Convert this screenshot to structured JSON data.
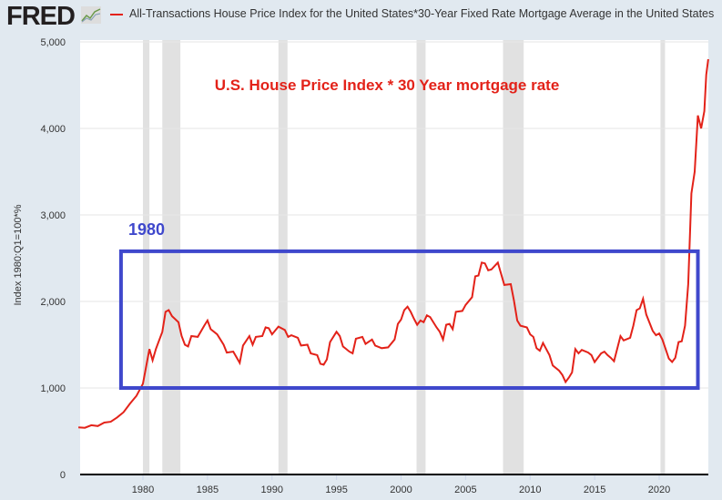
{
  "header": {
    "logo": "FRED",
    "legend": "All-Transactions House Price Index for the United States*30-Year Fixed Rate Mortgage Average in the United States"
  },
  "colors": {
    "series": "#e32219",
    "box": "#3f48cc",
    "recession": "#e1e1e1",
    "annotation": "#e32219"
  },
  "chart_data": {
    "type": "line",
    "ylabel": "Index 1980:Q1=100*%",
    "ylim": [
      0,
      5000
    ],
    "xlim": [
      1975,
      2024
    ],
    "yticks": [
      "0",
      "1,000",
      "2,000",
      "3,000",
      "4,000",
      "5,000"
    ],
    "xticks": [
      "1980",
      "1985",
      "1990",
      "1995",
      "2000",
      "2005",
      "2010",
      "2015",
      "2020"
    ],
    "grid": true,
    "legend_position": "top",
    "recessions": [
      [
        1980.0,
        1980.5
      ],
      [
        1981.5,
        1982.9
      ],
      [
        1990.5,
        1991.2
      ],
      [
        2001.2,
        2001.9
      ],
      [
        2007.9,
        2009.5
      ],
      [
        2020.1,
        2020.4
      ]
    ],
    "annotations": {
      "title": "U.S. House Price Index * 30 Year mortgage rate",
      "box_label": "1980",
      "box_range": {
        "x": [
          1978.3,
          2023
        ],
        "y": [
          1000,
          2580
        ]
      }
    },
    "series": [
      {
        "x": [
          1975,
          1975.5,
          1976,
          1976.5,
          1977,
          1977.5,
          1978,
          1978.5,
          1979,
          1979.5,
          1980,
          1980.5,
          1980.75,
          1981,
          1981.5,
          1981.75,
          1982,
          1982.25,
          1982.75,
          1983,
          1983.25,
          1983.5,
          1983.75,
          1984.25,
          1984.75,
          1985,
          1985.25,
          1985.75,
          1986,
          1986.25,
          1986.5,
          1987,
          1987.5,
          1987.75,
          1988.25,
          1988.5,
          1988.75,
          1989.25,
          1989.5,
          1989.75,
          1990,
          1990.5,
          1991,
          1991.25,
          1991.5,
          1992,
          1992.25,
          1992.75,
          1993,
          1993.5,
          1993.75,
          1994,
          1994.25,
          1994.5,
          1995,
          1995.25,
          1995.5,
          1996,
          1996.25,
          1996.5,
          1997,
          1997.25,
          1997.75,
          1998,
          1998.5,
          1999,
          1999.5,
          1999.75,
          2000,
          2000.25,
          2000.5,
          2000.75,
          2001,
          2001.25,
          2001.5,
          2001.75,
          2002,
          2002.25,
          2002.75,
          2003,
          2003.25,
          2003.5,
          2003.75,
          2004,
          2004.25,
          2004.75,
          2005,
          2005.5,
          2005.75,
          2006,
          2006.25,
          2006.5,
          2006.75,
          2007,
          2007.5,
          2008,
          2008.5,
          2008.75,
          2009,
          2009.25,
          2009.75,
          2010,
          2010.25,
          2010.5,
          2010.75,
          2011,
          2011.5,
          2011.75,
          2012.25,
          2012.5,
          2012.75,
          2013,
          2013.25,
          2013.5,
          2013.75,
          2014,
          2014.5,
          2014.75,
          2015,
          2015.5,
          2015.75,
          2016,
          2016.25,
          2016.5,
          2017,
          2017.25,
          2017.75,
          2018,
          2018.25,
          2018.5,
          2018.75,
          2019,
          2019.5,
          2019.75,
          2020,
          2020.25,
          2020.5,
          2020.75,
          2021,
          2021.25,
          2021.5,
          2021.75,
          2022,
          2022.25,
          2022.5,
          2022.75,
          2023,
          2023.25,
          2023.5,
          2023.65,
          2023.8
        ],
        "y": [
          545,
          540,
          570,
          560,
          600,
          610,
          660,
          720,
          820,
          910,
          1050,
          1450,
          1320,
          1450,
          1650,
          1880,
          1900,
          1830,
          1760,
          1600,
          1500,
          1480,
          1600,
          1590,
          1720,
          1780,
          1680,
          1620,
          1560,
          1500,
          1410,
          1420,
          1290,
          1490,
          1600,
          1500,
          1590,
          1600,
          1700,
          1690,
          1620,
          1710,
          1670,
          1590,
          1610,
          1580,
          1490,
          1500,
          1400,
          1380,
          1280,
          1270,
          1330,
          1530,
          1650,
          1600,
          1480,
          1420,
          1400,
          1570,
          1590,
          1510,
          1560,
          1490,
          1460,
          1470,
          1560,
          1740,
          1790,
          1900,
          1940,
          1880,
          1800,
          1730,
          1780,
          1760,
          1840,
          1820,
          1700,
          1650,
          1560,
          1730,
          1740,
          1680,
          1880,
          1890,
          1960,
          2050,
          2290,
          2300,
          2450,
          2440,
          2360,
          2370,
          2450,
          2190,
          2200,
          2010,
          1780,
          1720,
          1700,
          1620,
          1590,
          1460,
          1430,
          1520,
          1380,
          1260,
          1200,
          1150,
          1070,
          1120,
          1180,
          1450,
          1400,
          1440,
          1410,
          1380,
          1300,
          1400,
          1420,
          1380,
          1350,
          1310,
          1600,
          1550,
          1580,
          1720,
          1900,
          1920,
          2030,
          1850,
          1660,
          1610,
          1630,
          1560,
          1450,
          1340,
          1300,
          1350,
          1530,
          1540,
          1720,
          2200,
          3250,
          3500,
          4150,
          4000,
          4200,
          4620,
          4800
        ]
      }
    ]
  }
}
